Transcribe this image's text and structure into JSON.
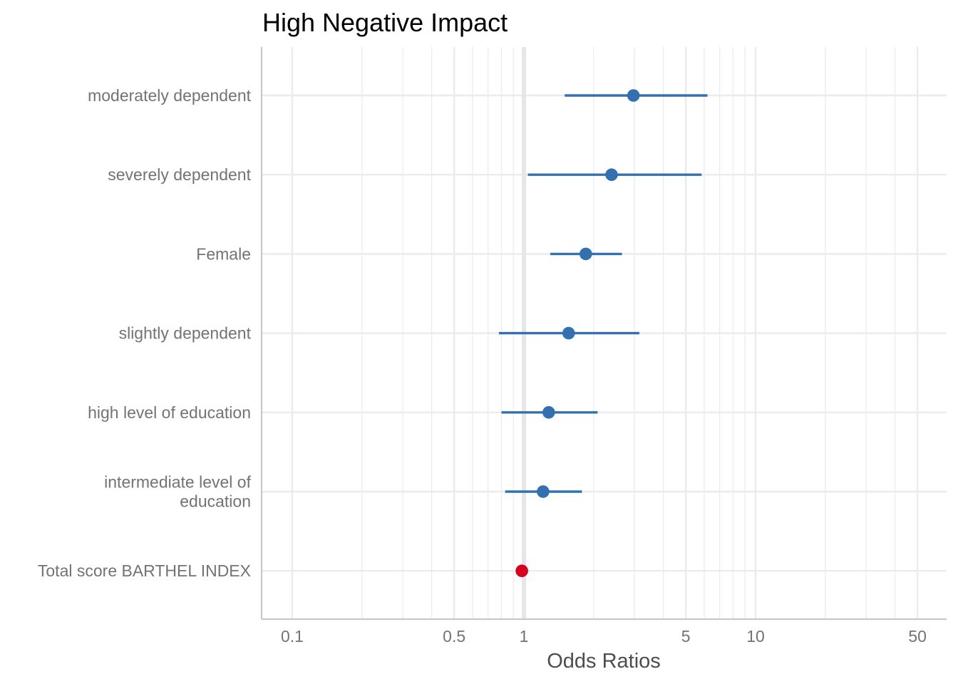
{
  "chart_data": {
    "type": "scatter",
    "title": "High Negative Impact",
    "xlabel": "Odds Ratios",
    "ylabel": "",
    "x_scale": "log10",
    "xlim": [
      0.075,
      60
    ],
    "x_ticks": [
      {
        "value": 0.1,
        "label": "0.1"
      },
      {
        "value": 0.5,
        "label": "0.5"
      },
      {
        "value": 1,
        "label": "1"
      },
      {
        "value": 5,
        "label": "5"
      },
      {
        "value": 10,
        "label": "10"
      },
      {
        "value": 50,
        "label": "50"
      }
    ],
    "x_minor_grid": [
      0.2,
      0.3,
      0.4,
      0.6,
      0.7,
      0.8,
      0.9,
      2,
      3,
      4,
      6,
      7,
      8,
      9,
      20,
      30,
      40
    ],
    "reference_line": 1,
    "grid": true,
    "legend": "none",
    "colors": {
      "above_one": "#3370b0",
      "below_one": "#d7001f",
      "grid": "#ebebeb",
      "axis": "#c8c8c8",
      "reference": "#e6e6e6"
    },
    "rows": [
      {
        "label": [
          "moderately dependent"
        ],
        "estimate": 2.97,
        "ci_low": 1.5,
        "ci_high": 6.2,
        "color": "above_one"
      },
      {
        "label": [
          "severely dependent"
        ],
        "estimate": 2.39,
        "ci_low": 1.04,
        "ci_high": 5.85,
        "color": "above_one"
      },
      {
        "label": [
          "Female"
        ],
        "estimate": 1.85,
        "ci_low": 1.3,
        "ci_high": 2.65,
        "color": "above_one"
      },
      {
        "label": [
          "slightly dependent"
        ],
        "estimate": 1.56,
        "ci_low": 0.78,
        "ci_high": 3.15,
        "color": "above_one"
      },
      {
        "label": [
          "high level of education"
        ],
        "estimate": 1.28,
        "ci_low": 0.8,
        "ci_high": 2.08,
        "color": "above_one"
      },
      {
        "label": [
          "intermediate level of",
          "education"
        ],
        "estimate": 1.21,
        "ci_low": 0.83,
        "ci_high": 1.78,
        "color": "above_one"
      },
      {
        "label": [
          "Total score BARTHEL INDEX"
        ],
        "estimate": 0.98,
        "ci_low": 0.97,
        "ci_high": 0.99,
        "color": "below_one"
      }
    ]
  }
}
